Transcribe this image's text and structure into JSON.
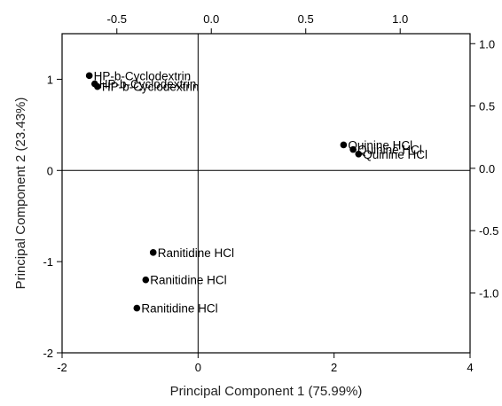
{
  "chart_data": {
    "type": "scatter",
    "xlabel": "Principal Component 1 (75.99%)",
    "ylabel": "Principal Component 2 (23.43%)",
    "xlim": [
      -2,
      4
    ],
    "ylim": [
      -2,
      1.5
    ],
    "x_ticks": [
      "-2",
      "0",
      "2",
      "4"
    ],
    "y_ticks": [
      "-2",
      "-1",
      "0",
      "1"
    ],
    "top_xlim": [
      -0.79,
      1.37
    ],
    "top_x_ticks": [
      "-0.5",
      "0.0",
      "0.5",
      "1.0"
    ],
    "right_ylim": [
      -1.48,
      1.08
    ],
    "right_y_ticks": [
      "-1.0",
      "-0.5",
      "0.0",
      "0.5",
      "1.0"
    ],
    "grid": false,
    "reference_lines": {
      "x": 0,
      "y": 0
    },
    "points": [
      {
        "x": -1.6,
        "y": 1.04,
        "label": "HP-b-Cyclodextrin"
      },
      {
        "x": -1.52,
        "y": 0.95,
        "label": "HP-b-Cyclodextrin"
      },
      {
        "x": -1.48,
        "y": 0.92,
        "label": "HP-b-Cyclodextrin"
      },
      {
        "x": 2.14,
        "y": 0.28,
        "label": "Quinine HCl"
      },
      {
        "x": 2.28,
        "y": 0.23,
        "label": "Quinine HCl"
      },
      {
        "x": 2.36,
        "y": 0.18,
        "label": "Quinine HCl"
      },
      {
        "x": -0.66,
        "y": -0.9,
        "label": "Ranitidine HCl"
      },
      {
        "x": -0.77,
        "y": -1.2,
        "label": "Ranitidine HCl"
      },
      {
        "x": -0.9,
        "y": -1.51,
        "label": "Ranitidine HCl"
      }
    ]
  }
}
